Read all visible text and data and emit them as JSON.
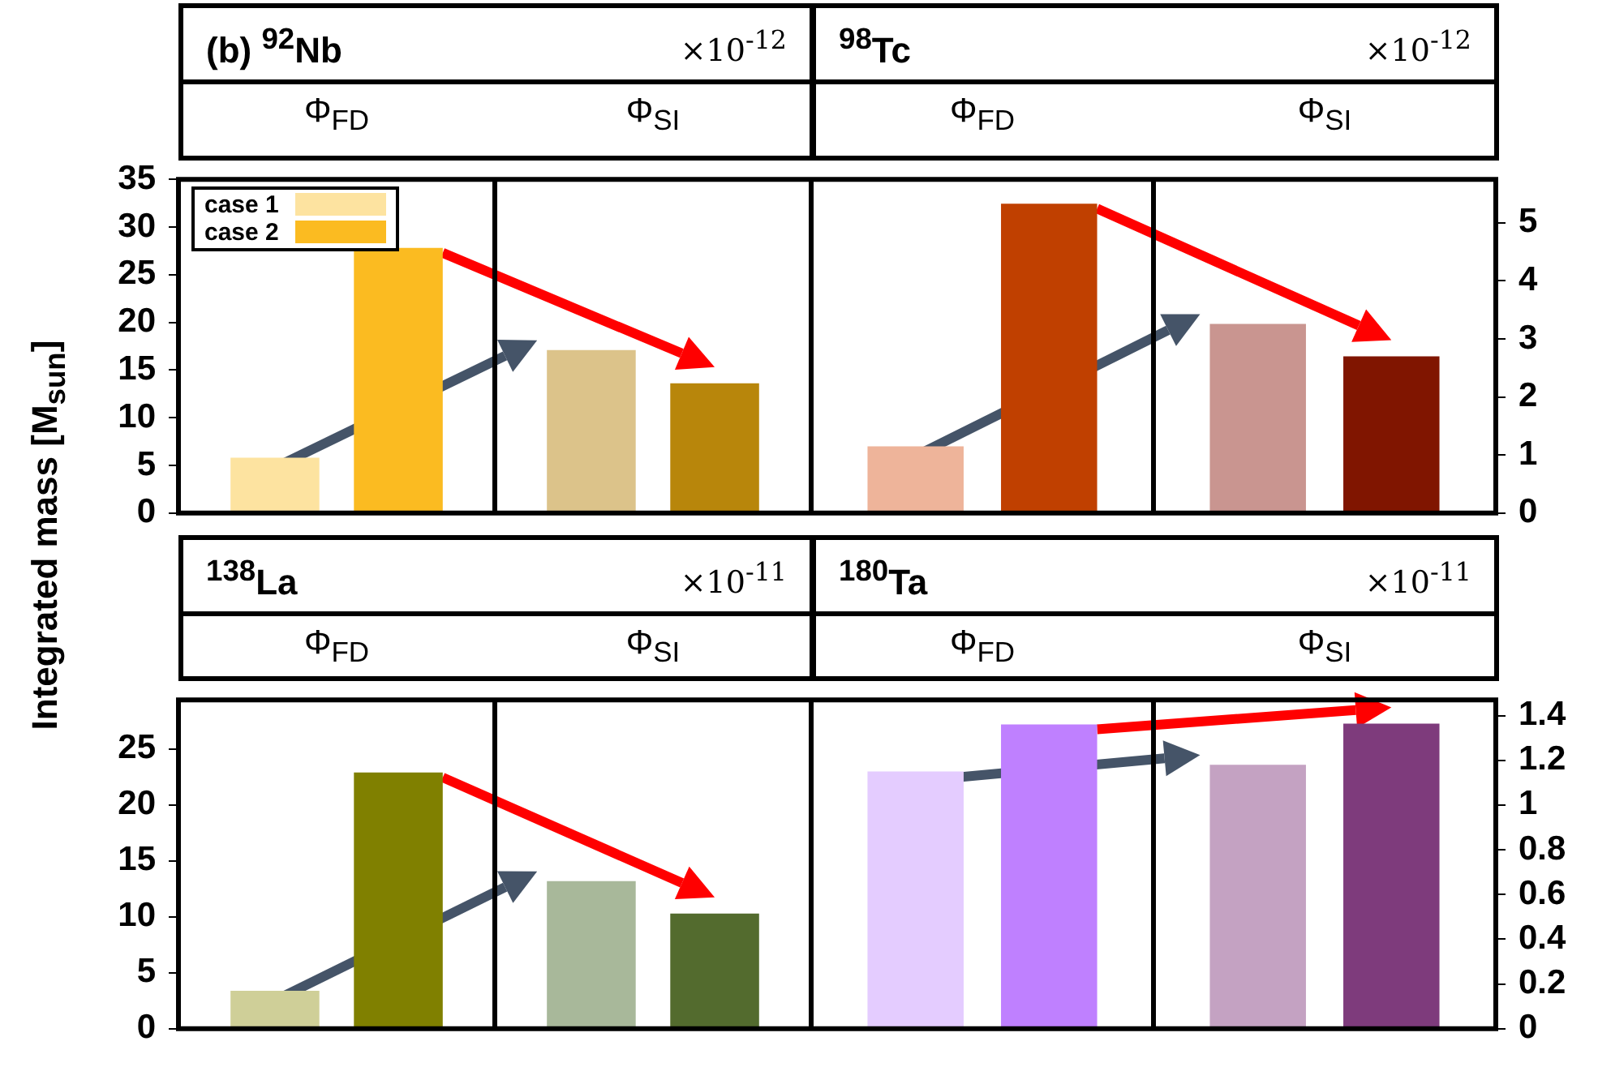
{
  "chart_data": [
    {
      "type": "bar",
      "title": "(b) $^{92}$Nb",
      "subtitle": "×10$^{-12}$",
      "ylabel": "Integrated mass [M$_{sun}$]",
      "categories": [
        "Φ$_{FD}$",
        "Φ$_{SI}$"
      ],
      "legend": "top left",
      "grid": "x",
      "ylim": [
        0,
        35
      ],
      "yticks": [
        0,
        5,
        10,
        15,
        20,
        25,
        30,
        35
      ],
      "series": [
        {
          "name": "case 1",
          "colors": [
            "#fde3a0",
            "#dcc38a"
          ],
          "values": [
            5.8,
            17.1
          ]
        },
        {
          "name": "case 2",
          "colors": [
            "#fbbb21",
            "#b8860b"
          ],
          "values": [
            27.8,
            13.6
          ]
        }
      ]
    },
    {
      "type": "bar",
      "title": "$^{98}$Tc",
      "subtitle": "×10$^{-12}$",
      "categories": [
        "Φ$_{FD}$",
        "Φ$_{SI}$"
      ],
      "grid": "x",
      "ylim": [
        0,
        5.75
      ],
      "yticks": [
        0,
        1,
        2,
        3,
        4,
        5
      ],
      "series": [
        {
          "colors": [
            "#eeb49a",
            "#c99590"
          ],
          "values": [
            1.15,
            3.26
          ]
        },
        {
          "colors": [
            "#c04000",
            "#801500"
          ],
          "values": [
            5.33,
            2.7
          ]
        }
      ]
    },
    {
      "type": "bar",
      "title": "$^{138}$La",
      "subtitle": "×10$^{-11}$",
      "categories": [
        "Φ$_{FD}$",
        "Φ$_{SI}$"
      ],
      "grid": "x",
      "ylim": [
        0,
        29.4
      ],
      "yticks": [
        0,
        5,
        10,
        15,
        20,
        25
      ],
      "series": [
        {
          "colors": [
            "#cfcf98",
            "#a8b89a"
          ],
          "values": [
            3.4,
            13.2
          ]
        },
        {
          "colors": [
            "#808000",
            "#536b2e"
          ],
          "values": [
            22.9,
            10.3
          ]
        }
      ]
    },
    {
      "type": "bar",
      "title": "$^{180}$Ta",
      "subtitle": "×10$^{-11}$",
      "categories": [
        "Φ$_{FD}$",
        "Φ$_{SI}$"
      ],
      "grid": "x",
      "ylim": [
        0,
        1.47
      ],
      "yticks": [
        0,
        0.2,
        0.4,
        0.6,
        0.8,
        1,
        1.2,
        1.4
      ],
      "series": [
        {
          "colors": [
            "#e4ccff",
            "#c4a2c2"
          ],
          "values": [
            1.15,
            1.18
          ]
        },
        {
          "colors": [
            "#bf80ff",
            "#7e3b7c"
          ],
          "values": [
            1.36,
            1.364
          ]
        }
      ]
    }
  ]
}
